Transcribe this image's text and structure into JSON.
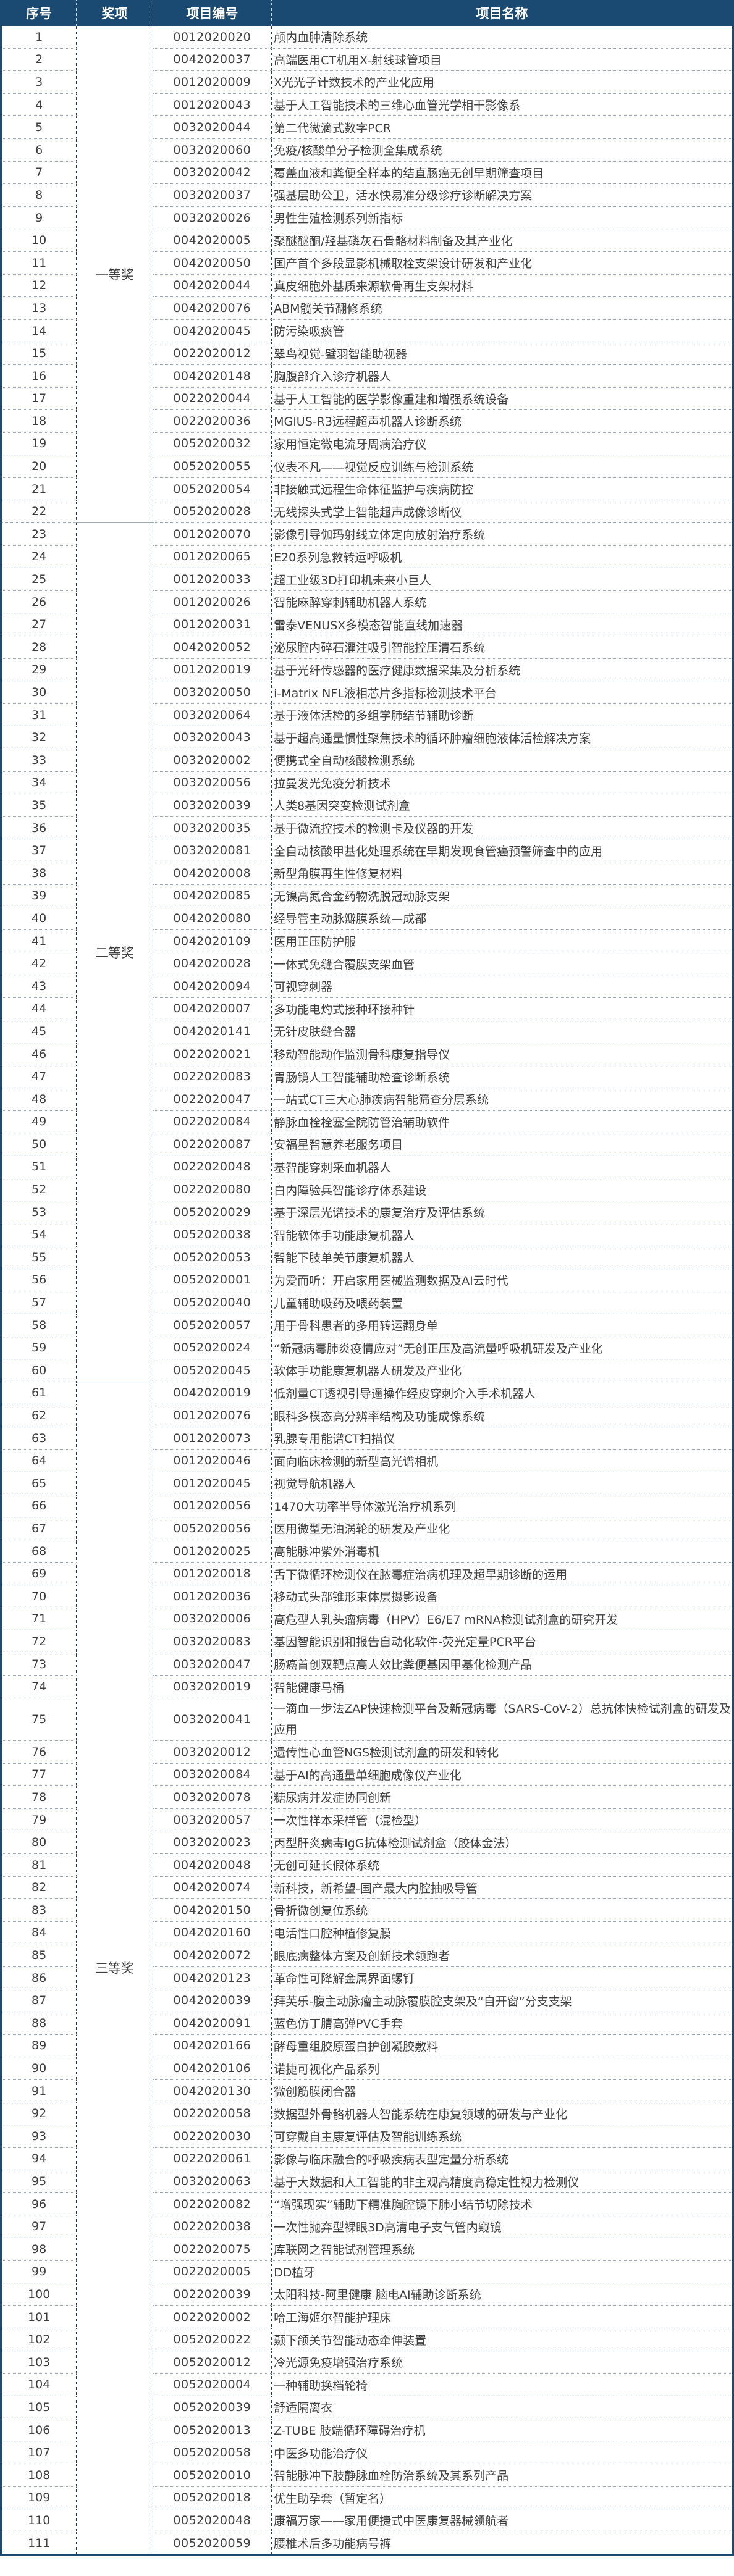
{
  "table": {
    "headers": [
      "序号",
      "奖项",
      "项目编号",
      "项目名称"
    ],
    "groups": [
      {
        "award": "一等奖",
        "rows": [
          [
            "1",
            "0012020020",
            "颅内血肿清除系统"
          ],
          [
            "2",
            "0042020037",
            "高端医用CT机用X-射线球管项目"
          ],
          [
            "3",
            "0012020009",
            "X光光子计数技术的产业化应用"
          ],
          [
            "4",
            "0012020043",
            "基于人工智能技术的三维心血管光学相干影像系"
          ],
          [
            "5",
            "0032020044",
            "第二代微滴式数字PCR"
          ],
          [
            "6",
            "0032020060",
            "免疫/核酸单分子检测全集成系统"
          ],
          [
            "7",
            "0032020042",
            "覆盖血液和粪便全样本的结直肠癌无创早期筛查项目"
          ],
          [
            "8",
            "0032020037",
            "强基层助公卫，活水快易准分级诊疗诊断解决方案"
          ],
          [
            "9",
            "0032020026",
            "男性生殖检测系列新指标"
          ],
          [
            "10",
            "0042020005",
            "聚醚醚酮/羟基磷灰石骨骼材料制备及其产业化"
          ],
          [
            "11",
            "0042020050",
            "国产首个多段显影机械取栓支架设计研发和产业化"
          ],
          [
            "12",
            "0042020044",
            "真皮细胞外基质来源软骨再生支架材料"
          ],
          [
            "13",
            "0042020076",
            "ABM髋关节翻修系统"
          ],
          [
            "14",
            "0042020045",
            "防污染吸痰管"
          ],
          [
            "15",
            "0022020012",
            "翠鸟视觉-璧羽智能助视器"
          ],
          [
            "16",
            "0042020148",
            "胸腹部介入诊疗机器人"
          ],
          [
            "17",
            "0022020044",
            "基于人工智能的医学影像重建和增强系统设备"
          ],
          [
            "18",
            "0022020036",
            "MGIUS-R3远程超声机器人诊断系统"
          ],
          [
            "19",
            "0052020032",
            "家用恒定微电流牙周病治疗仪"
          ],
          [
            "20",
            "0052020055",
            "仪表不凡——视觉反应训练与检测系统"
          ],
          [
            "21",
            "0052020054",
            "非接触式远程生命体征监护与疾病防控"
          ],
          [
            "22",
            "0052020028",
            "无线探头式掌上智能超声成像诊断仪"
          ]
        ]
      },
      {
        "award": "二等奖",
        "rows": [
          [
            "23",
            "0012020070",
            "影像引导伽玛射线立体定向放射治疗系统"
          ],
          [
            "24",
            "0012020065",
            "E20系列急救转运呼吸机"
          ],
          [
            "25",
            "0012020033",
            "超工业级3D打印机未来小巨人"
          ],
          [
            "26",
            "0012020026",
            "智能麻醉穿刺辅助机器人系统"
          ],
          [
            "27",
            "0012020031",
            "雷泰VENUSX多模态智能直线加速器"
          ],
          [
            "28",
            "0042020052",
            "泌尿腔内碎石灌注吸引智能控压清石系统"
          ],
          [
            "29",
            "0012020019",
            "基于光纤传感器的医疗健康数据采集及分析系统"
          ],
          [
            "30",
            "0032020050",
            "i-Matrix NFL液相芯片多指标检测技术平台"
          ],
          [
            "31",
            "0032020064",
            "基于液体活检的多组学肺结节辅助诊断"
          ],
          [
            "32",
            "0032020043",
            "基于超高通量惯性聚焦技术的循环肿瘤细胞液体活检解决方案"
          ],
          [
            "33",
            "0032020002",
            "便携式全自动核酸检测系统"
          ],
          [
            "34",
            "0032020056",
            "拉曼发光免疫分析技术"
          ],
          [
            "35",
            "0032020039",
            "人类8基因突变检测试剂盒"
          ],
          [
            "36",
            "0032020035",
            "基于微流控技术的检测卡及仪器的开发"
          ],
          [
            "37",
            "0032020081",
            "全自动核酸甲基化处理系统在早期发现食管癌预警筛查中的应用"
          ],
          [
            "38",
            "0042020008",
            "新型角膜再生性修复材料"
          ],
          [
            "39",
            "0042020085",
            "无镍高氮合金药物洗脱冠动脉支架"
          ],
          [
            "40",
            "0042020080",
            "经导管主动脉瓣膜系统—成都"
          ],
          [
            "41",
            "0042020109",
            "医用正压防护服"
          ],
          [
            "42",
            "0042020028",
            "一体式免缝合覆膜支架血管"
          ],
          [
            "43",
            "0042020094",
            "可视穿刺器"
          ],
          [
            "44",
            "0042020007",
            "多功能电灼式接种环接种针"
          ],
          [
            "45",
            "0042020141",
            "无针皮肤缝合器"
          ],
          [
            "46",
            "0022020021",
            "移动智能动作监测骨科康复指导仪"
          ],
          [
            "47",
            "0022020083",
            "胃肠镜人工智能辅助检查诊断系统"
          ],
          [
            "48",
            "0022020047",
            "一站式CT三大心肺疾病智能筛查分层系统"
          ],
          [
            "49",
            "0022020084",
            "静脉血栓栓塞全院防管治辅助软件"
          ],
          [
            "50",
            "0022020087",
            "安福星智慧养老服务项目"
          ],
          [
            "51",
            "0022020048",
            "基智能穿刺采血机器人"
          ],
          [
            "52",
            "0022020080",
            "白内障验兵智能诊疗体系建设"
          ],
          [
            "53",
            "0052020029",
            "基于深层光谱技术的康复治疗及评估系统"
          ],
          [
            "54",
            "0052020038",
            "智能软体手功能康复机器人"
          ],
          [
            "55",
            "0052020053",
            "智能下肢单关节康复机器人"
          ],
          [
            "56",
            "0052020001",
            "为爱而听：开启家用医械监测数据及AI云时代"
          ],
          [
            "57",
            "0052020040",
            "儿童辅助吸药及喂药装置"
          ],
          [
            "58",
            "0052020057",
            "用于骨科患者的多用转运翻身单"
          ],
          [
            "59",
            "0052020024",
            "“新冠病毒肺炎疫情应对”无创正压及高流量呼吸机研发及产业化"
          ],
          [
            "60",
            "0052020045",
            "软体手功能康复机器人研发及产业化"
          ]
        ]
      },
      {
        "award": "三等奖",
        "rows": [
          [
            "61",
            "0042020019",
            "低剂量CT透视引导遥操作经皮穿刺介入手术机器人"
          ],
          [
            "62",
            "0012020076",
            "眼科多模态高分辨率结构及功能成像系统"
          ],
          [
            "63",
            "0012020073",
            "乳腺专用能谱CT扫描仪"
          ],
          [
            "64",
            "0012020046",
            "面向临床检测的新型高光谱相机"
          ],
          [
            "65",
            "0012020045",
            "视觉导航机器人"
          ],
          [
            "66",
            "0012020056",
            "1470大功率半导体激光治疗机系列"
          ],
          [
            "67",
            "0052020056",
            "医用微型无油涡轮的研发及产业化"
          ],
          [
            "68",
            "0012020025",
            "高能脉冲紫外消毒机"
          ],
          [
            "69",
            "0012020018",
            "舌下微循环检测仪在脓毒症治病机理及超早期诊断的运用"
          ],
          [
            "70",
            "0012020036",
            "移动式头部锥形束体层摄影设备"
          ],
          [
            "71",
            "0032020006",
            "高危型人乳头瘤病毒（HPV）E6/E7 mRNA检测试剂盒的研究开发"
          ],
          [
            "72",
            "0032020083",
            "基因智能识别和报告自动化软件-荧光定量PCR平台"
          ],
          [
            "73",
            "0032020047",
            "肠癌首创双靶点高人效比粪便基因甲基化检测产品"
          ],
          [
            "74",
            "0032020019",
            "智能健康马桶"
          ],
          [
            "75",
            "0032020041",
            "一滴血一步法ZAP快速检测平台及新冠病毒（SARS-CoV-2）总抗体快检试剂盒的研发及应用"
          ],
          [
            "76",
            "0032020012",
            "遗传性心血管NGS检测试剂盒的研发和转化"
          ],
          [
            "77",
            "0032020084",
            "基于AI的高通量单细胞成像仪产业化"
          ],
          [
            "78",
            "0032020078",
            "糖尿病并发症协同创新"
          ],
          [
            "79",
            "0032020057",
            "一次性样本采样管（混检型）"
          ],
          [
            "80",
            "0032020023",
            "丙型肝炎病毒IgG抗体检测试剂盒（胶体金法）"
          ],
          [
            "81",
            "0042020048",
            "无创可延长假体系统"
          ],
          [
            "82",
            "0042020074",
            "新科技，新希望-国产最大内腔抽吸导管"
          ],
          [
            "83",
            "0042020150",
            "骨折微创复位系统"
          ],
          [
            "84",
            "0042020160",
            "电活性口腔种植修复膜"
          ],
          [
            "85",
            "0042020072",
            "眼底病整体方案及创新技术领跑者"
          ],
          [
            "86",
            "0042020123",
            "革命性可降解金属界面螺钉"
          ],
          [
            "87",
            "0042020039",
            "拜芙乐-腹主动脉瘤主动脉覆膜腔支架及“自开窗”分支支架"
          ],
          [
            "88",
            "0042020091",
            "蓝色仿丁腈高弹PVC手套"
          ],
          [
            "89",
            "0042020166",
            "酵母重组胶原蛋白护创凝胶敷料"
          ],
          [
            "90",
            "0042020106",
            "诺捷可视化产品系列"
          ],
          [
            "91",
            "0042020130",
            "微创筋膜闭合器"
          ],
          [
            "92",
            "0022020058",
            "数据型外骨骼机器人智能系统在康复领域的研发与产业化"
          ],
          [
            "93",
            "0022020030",
            "可穿戴自主康复评估及智能训练系统"
          ],
          [
            "94",
            "0022020061",
            "影像与临床融合的呼吸疾病表型定量分析系统"
          ],
          [
            "95",
            "0032020063",
            "基于大数据和人工智能的非主观高精度高稳定性视力检测仪"
          ],
          [
            "96",
            "0022020082",
            "“增强现实”辅助下精准胸腔镜下肺小结节切除技术"
          ],
          [
            "97",
            "0022020038",
            "一次性抛弃型裸眼3D高清电子支气管内窥镜"
          ],
          [
            "98",
            "0022020075",
            "库联网之智能试剂管理系统"
          ],
          [
            "99",
            "0022020005",
            "DD植牙"
          ],
          [
            "100",
            "0022020039",
            "太阳科技-阿里健康 脑电AI辅助诊断系统"
          ],
          [
            "101",
            "0022020002",
            "哈工海姬尔智能护理床"
          ],
          [
            "102",
            "0052020022",
            "颞下颌关节智能动态牵伸装置"
          ],
          [
            "103",
            "0052020012",
            "冷光源免疫增强治疗系统"
          ],
          [
            "104",
            "0052020004",
            "一种辅助换档轮椅"
          ],
          [
            "105",
            "0052020039",
            "舒适隔离衣"
          ],
          [
            "106",
            "0052020013",
            "Z-TUBE 肢端循环障碍治疗机"
          ],
          [
            "107",
            "0052020058",
            "中医多功能治疗仪"
          ],
          [
            "108",
            "0052020010",
            "智能脉冲下肢静脉血栓防治系统及其系列产品"
          ],
          [
            "109",
            "0052020018",
            "优生助孕套（暂定名）"
          ],
          [
            "110",
            "0052020048",
            "康福万家——家用便捷式中医康复器械领航者"
          ],
          [
            "111",
            "0052020059",
            "腰椎术后多功能病号裤"
          ]
        ]
      }
    ],
    "colors": {
      "header_bg": "#1a4a72",
      "header_text": "#ffffff",
      "body_text": "#3f3f3f"
    }
  }
}
